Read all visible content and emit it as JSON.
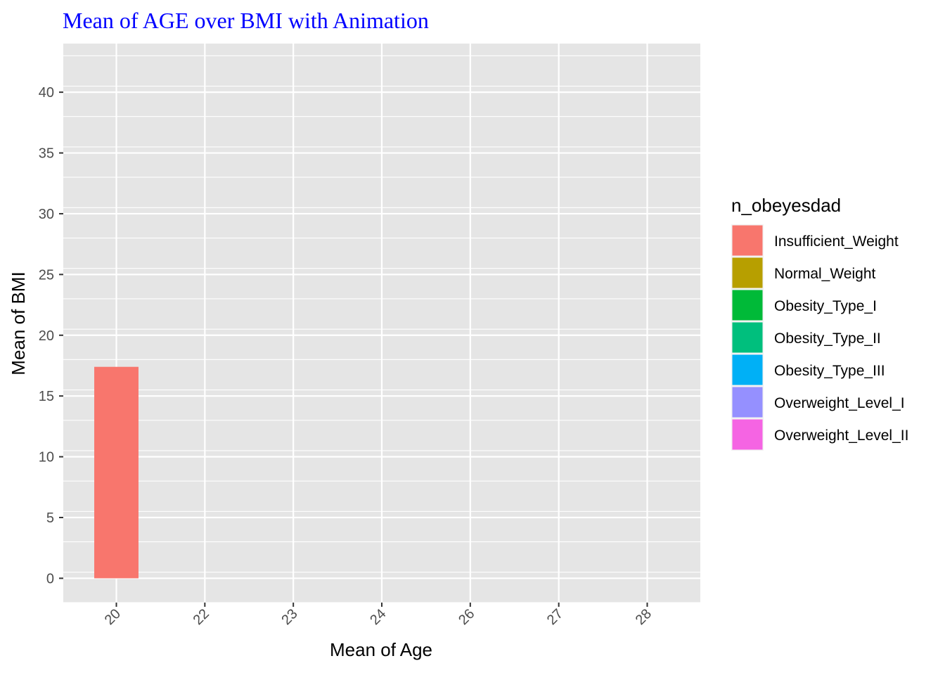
{
  "chart_data": {
    "type": "bar",
    "title": "Mean of AGE over BMI with Animation",
    "xlabel": "Mean of Age",
    "ylabel": "Mean of BMI",
    "categories": [
      "20",
      "22",
      "23",
      "24",
      "26",
      "27",
      "28"
    ],
    "series": [
      {
        "name": "Insufficient_Weight",
        "color": "#F8766D",
        "values": [
          17.4,
          null,
          null,
          null,
          null,
          null,
          null
        ]
      },
      {
        "name": "Normal_Weight",
        "color": "#B79F00",
        "values": [
          null,
          null,
          null,
          null,
          null,
          null,
          null
        ]
      },
      {
        "name": "Obesity_Type_I",
        "color": "#00BA38",
        "values": [
          null,
          null,
          null,
          null,
          null,
          null,
          null
        ]
      },
      {
        "name": "Obesity_Type_II",
        "color": "#00BF7D",
        "values": [
          null,
          null,
          null,
          null,
          null,
          null,
          null
        ]
      },
      {
        "name": "Obesity_Type_III",
        "color": "#00B0F6",
        "values": [
          null,
          null,
          null,
          null,
          null,
          null,
          null
        ]
      },
      {
        "name": "Overweight_Level_I",
        "color": "#9590FF",
        "values": [
          null,
          null,
          null,
          null,
          null,
          null,
          null
        ]
      },
      {
        "name": "Overweight_Level_II",
        "color": "#F564E3",
        "values": [
          null,
          null,
          null,
          null,
          null,
          null,
          null
        ]
      }
    ],
    "yticks": [
      0,
      5,
      10,
      15,
      20,
      25,
      30,
      35,
      40
    ],
    "ylim": [
      -2,
      44
    ],
    "legend_title": "n_obeyesdad",
    "legend_position": "right",
    "grid": true,
    "x_tick_rotation_deg": 45,
    "colors": {
      "panel": "#E5E5E5",
      "grid": "#FFFFFF",
      "title": "#0000FF",
      "tick": "#4D4D4D"
    }
  }
}
